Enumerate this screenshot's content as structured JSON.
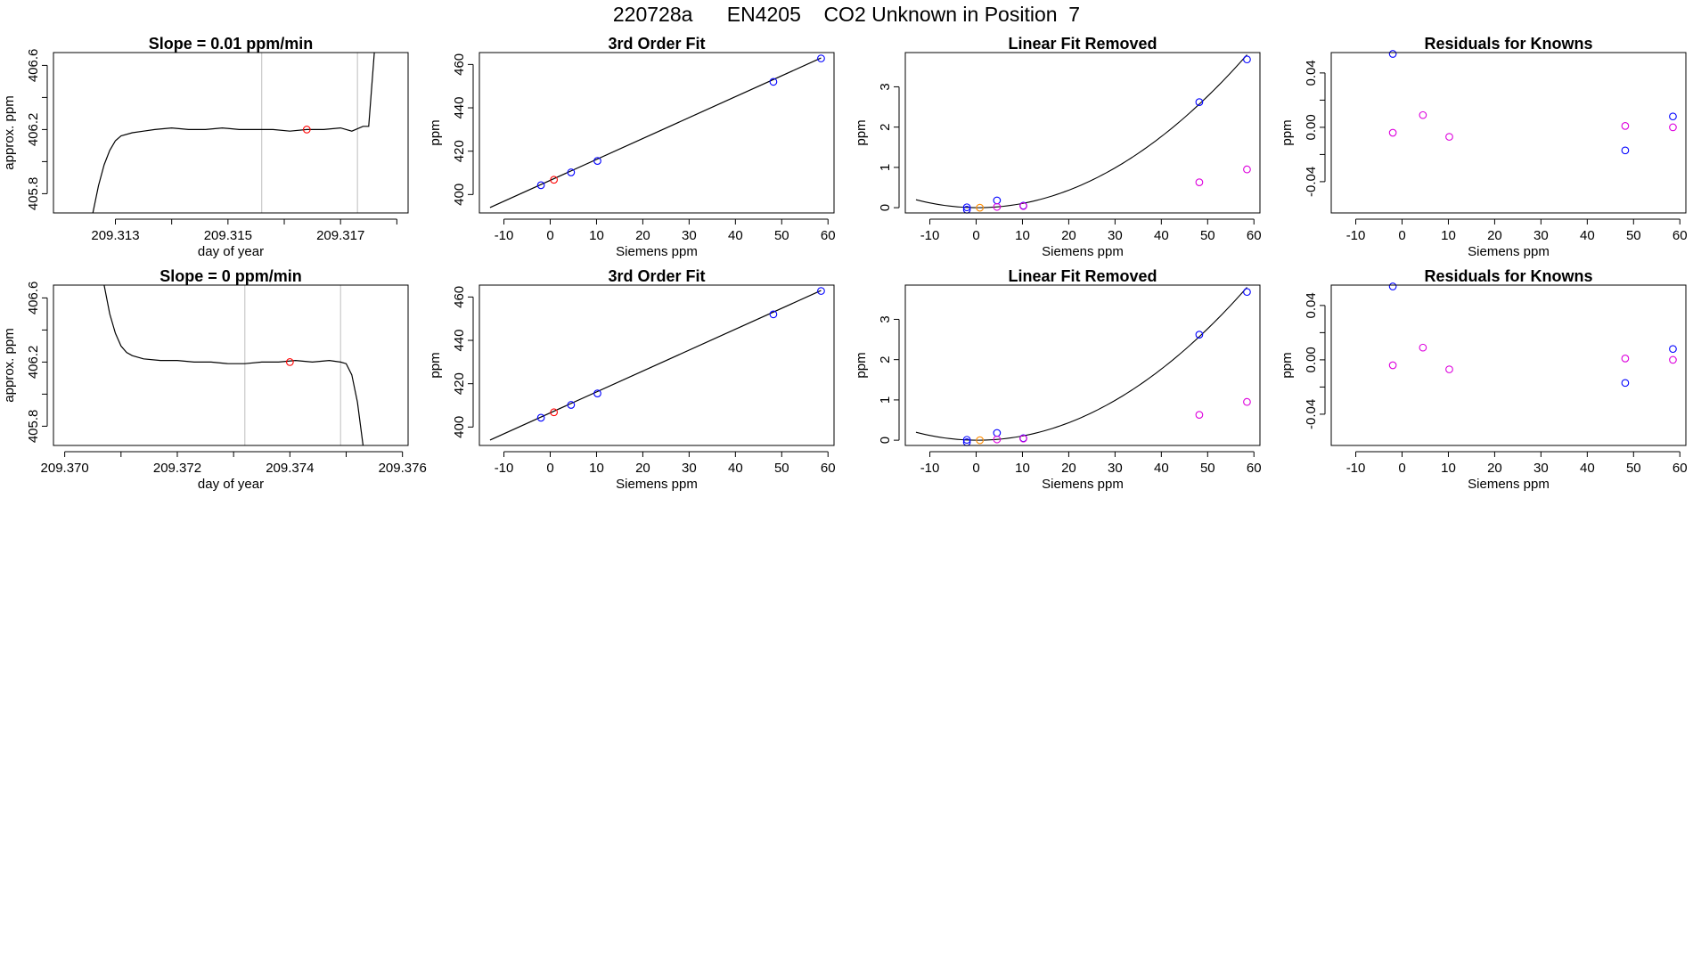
{
  "figure_title": "220728a      EN4205    CO2 Unknown in Position  7",
  "colors": {
    "known": "#0000ff",
    "unknown": "#ff0000",
    "orange": "#ff8c00",
    "magenta": "#dd00dd",
    "line": "#000000",
    "vline": "#bebebe"
  },
  "chart_data": [
    {
      "type": "line",
      "title": "Slope =  0.01  ppm/min",
      "xlabel": "day of year",
      "ylabel": "approx. ppm",
      "xlim": [
        209.3119,
        209.3182
      ],
      "ylim": [
        405.68,
        406.68
      ],
      "xticks": [
        209.313,
        209.314,
        209.315,
        209.316,
        209.317,
        209.318
      ],
      "xtick_labels": [
        "209.313",
        "",
        "209.315",
        "",
        "209.317",
        ""
      ],
      "yticks": [
        405.8,
        406.0,
        406.2,
        406.4,
        406.6
      ],
      "ytick_labels": [
        "405.8",
        "",
        "406.2",
        "",
        "406.6"
      ],
      "vlines": [
        209.3156,
        209.3173
      ],
      "series": [
        {
          "x": [
            209.3126,
            209.3127,
            209.3128,
            209.3129,
            209.313,
            209.3131,
            209.3133,
            209.3135,
            209.3137,
            209.314,
            209.3143,
            209.3146,
            209.3149,
            209.3152,
            209.3155,
            209.3158,
            209.3161,
            209.3164,
            209.3167,
            209.317,
            209.3172,
            209.3174,
            209.3175,
            209.3176
          ],
          "y": [
            405.68,
            405.85,
            405.98,
            406.07,
            406.13,
            406.16,
            406.18,
            406.19,
            406.2,
            406.21,
            406.2,
            406.2,
            406.21,
            406.2,
            406.2,
            406.2,
            406.19,
            406.2,
            406.2,
            406.21,
            406.19,
            406.22,
            406.22,
            406.68
          ]
        }
      ],
      "points": [
        {
          "x": 209.3164,
          "y": 406.2,
          "color": "unknown"
        }
      ]
    },
    {
      "type": "scatter",
      "title": "3rd Order Fit",
      "xlabel": "Siemens ppm",
      "ylabel": "ppm",
      "xlim": [
        -15.3,
        61.3
      ],
      "ylim": [
        391.5,
        465.5
      ],
      "xticks": [
        -10,
        0,
        10,
        20,
        30,
        40,
        50,
        60
      ],
      "xtick_labels": [
        "-10",
        "0",
        "10",
        "20",
        "30",
        "40",
        "50",
        "60"
      ],
      "yticks": [
        400,
        420,
        440,
        460
      ],
      "ytick_labels": [
        "400",
        "420",
        "440",
        "460"
      ],
      "series": [
        {
          "x": [
            -13,
            58.5
          ],
          "y": [
            394,
            463
          ]
        }
      ],
      "points": [
        {
          "x": -2,
          "y": 404.3,
          "color": "known"
        },
        {
          "x": 0.8,
          "y": 406.8,
          "color": "unknown"
        },
        {
          "x": 4.5,
          "y": 410.2,
          "color": "known"
        },
        {
          "x": 10.2,
          "y": 415.5,
          "color": "known"
        },
        {
          "x": 48.2,
          "y": 452.0,
          "color": "known"
        },
        {
          "x": 58.5,
          "y": 462.8,
          "color": "known"
        }
      ]
    },
    {
      "type": "scatter",
      "title": "Linear Fit Removed",
      "xlabel": "Siemens ppm",
      "ylabel": "ppm",
      "xlim": [
        -15.3,
        61.3
      ],
      "ylim": [
        -0.13,
        3.85
      ],
      "xticks": [
        -10,
        0,
        10,
        20,
        30,
        40,
        50,
        60
      ],
      "xtick_labels": [
        "-10",
        "0",
        "10",
        "20",
        "30",
        "40",
        "50",
        "60"
      ],
      "yticks": [
        0,
        1,
        2,
        3
      ],
      "ytick_labels": [
        "0",
        "1",
        "2",
        "3"
      ],
      "curve": {
        "x0": 0.3,
        "k": 0.00112,
        "from": -13,
        "to": 58.5
      },
      "points": [
        {
          "x": -2,
          "y": 0.01,
          "color": "known"
        },
        {
          "x": -2,
          "y": -0.05,
          "color": "known"
        },
        {
          "x": 0.8,
          "y": 0.0,
          "color": "orange"
        },
        {
          "x": 4.5,
          "y": 0.18,
          "color": "known"
        },
        {
          "x": 4.5,
          "y": 0.02,
          "color": "magenta"
        },
        {
          "x": 10.2,
          "y": 0.05,
          "color": "known"
        },
        {
          "x": 10.2,
          "y": 0.04,
          "color": "magenta"
        },
        {
          "x": 48.2,
          "y": 2.62,
          "color": "known"
        },
        {
          "x": 48.2,
          "y": 0.63,
          "color": "magenta"
        },
        {
          "x": 58.5,
          "y": 3.68,
          "color": "known"
        },
        {
          "x": 58.5,
          "y": 0.95,
          "color": "magenta"
        }
      ]
    },
    {
      "type": "scatter",
      "title": "Residuals for Knowns",
      "xlabel": "Siemens ppm",
      "ylabel": "ppm",
      "xlim": [
        -15.3,
        61.3
      ],
      "ylim": [
        -0.063,
        0.055
      ],
      "xticks": [
        -10,
        0,
        10,
        20,
        30,
        40,
        50,
        60
      ],
      "xtick_labels": [
        "-10",
        "0",
        "10",
        "20",
        "30",
        "40",
        "50",
        "60"
      ],
      "yticks": [
        -0.04,
        -0.02,
        0.0,
        0.02,
        0.04
      ],
      "ytick_labels": [
        "-0.04",
        "",
        "0.00",
        "",
        "0.04"
      ],
      "points": [
        {
          "x": -2,
          "y": 0.054,
          "color": "known"
        },
        {
          "x": -2,
          "y": -0.004,
          "color": "magenta"
        },
        {
          "x": 4.5,
          "y": 0.009,
          "color": "magenta"
        },
        {
          "x": 10.2,
          "y": -0.007,
          "color": "magenta"
        },
        {
          "x": 48.2,
          "y": -0.017,
          "color": "known"
        },
        {
          "x": 48.2,
          "y": 0.001,
          "color": "magenta"
        },
        {
          "x": 58.5,
          "y": 0.008,
          "color": "known"
        },
        {
          "x": 58.5,
          "y": 0.0,
          "color": "magenta"
        }
      ]
    },
    {
      "type": "line",
      "title": "Slope =  0  ppm/min",
      "xlabel": "day of year",
      "ylabel": "approx. ppm",
      "xlim": [
        209.3698,
        209.3761
      ],
      "ylim": [
        405.68,
        406.68
      ],
      "xticks": [
        209.37,
        209.371,
        209.372,
        209.373,
        209.374,
        209.375,
        209.376
      ],
      "xtick_labels": [
        "209.370",
        "",
        "209.372",
        "",
        "209.374",
        "",
        "209.376"
      ],
      "yticks": [
        405.8,
        406.0,
        406.2,
        406.4,
        406.6
      ],
      "ytick_labels": [
        "405.8",
        "",
        "406.2",
        "",
        "406.6"
      ],
      "vlines": [
        209.3732,
        209.3749
      ],
      "series": [
        {
          "x": [
            209.3707,
            209.3708,
            209.3709,
            209.371,
            209.3711,
            209.3712,
            209.3714,
            209.3717,
            209.372,
            209.3723,
            209.3726,
            209.3729,
            209.3732,
            209.3735,
            209.3738,
            209.3741,
            209.3744,
            209.3747,
            209.3749,
            209.375,
            209.3751,
            209.3752,
            209.3753
          ],
          "y": [
            406.68,
            406.5,
            406.38,
            406.3,
            406.26,
            406.24,
            406.22,
            406.21,
            406.21,
            406.2,
            406.2,
            406.19,
            406.19,
            406.2,
            406.2,
            406.21,
            406.2,
            406.21,
            406.2,
            406.19,
            406.12,
            405.95,
            405.68
          ]
        }
      ],
      "points": [
        {
          "x": 209.374,
          "y": 406.2,
          "color": "unknown"
        }
      ]
    },
    {
      "type": "scatter",
      "title": "3rd Order Fit",
      "xlabel": "Siemens ppm",
      "ylabel": "ppm",
      "xlim": [
        -15.3,
        61.3
      ],
      "ylim": [
        391.5,
        465.5
      ],
      "xticks": [
        -10,
        0,
        10,
        20,
        30,
        40,
        50,
        60
      ],
      "xtick_labels": [
        "-10",
        "0",
        "10",
        "20",
        "30",
        "40",
        "50",
        "60"
      ],
      "yticks": [
        400,
        420,
        440,
        460
      ],
      "ytick_labels": [
        "400",
        "420",
        "440",
        "460"
      ],
      "series": [
        {
          "x": [
            -13,
            58.5
          ],
          "y": [
            394,
            463
          ]
        }
      ],
      "points": [
        {
          "x": -2,
          "y": 404.3,
          "color": "known"
        },
        {
          "x": 0.8,
          "y": 406.8,
          "color": "unknown"
        },
        {
          "x": 4.5,
          "y": 410.2,
          "color": "known"
        },
        {
          "x": 10.2,
          "y": 415.5,
          "color": "known"
        },
        {
          "x": 48.2,
          "y": 452.0,
          "color": "known"
        },
        {
          "x": 58.5,
          "y": 462.8,
          "color": "known"
        }
      ]
    },
    {
      "type": "scatter",
      "title": "Linear Fit Removed",
      "xlabel": "Siemens ppm",
      "ylabel": "ppm",
      "xlim": [
        -15.3,
        61.3
      ],
      "ylim": [
        -0.13,
        3.85
      ],
      "xticks": [
        -10,
        0,
        10,
        20,
        30,
        40,
        50,
        60
      ],
      "xtick_labels": [
        "-10",
        "0",
        "10",
        "20",
        "30",
        "40",
        "50",
        "60"
      ],
      "yticks": [
        0,
        1,
        2,
        3
      ],
      "ytick_labels": [
        "0",
        "1",
        "2",
        "3"
      ],
      "curve": {
        "x0": 0.3,
        "k": 0.00112,
        "from": -13,
        "to": 58.5
      },
      "points": [
        {
          "x": -2,
          "y": 0.01,
          "color": "known"
        },
        {
          "x": -2,
          "y": -0.05,
          "color": "known"
        },
        {
          "x": 0.8,
          "y": 0.0,
          "color": "orange"
        },
        {
          "x": 4.5,
          "y": 0.18,
          "color": "known"
        },
        {
          "x": 4.5,
          "y": 0.02,
          "color": "magenta"
        },
        {
          "x": 10.2,
          "y": 0.05,
          "color": "known"
        },
        {
          "x": 10.2,
          "y": 0.04,
          "color": "magenta"
        },
        {
          "x": 48.2,
          "y": 2.62,
          "color": "known"
        },
        {
          "x": 48.2,
          "y": 0.63,
          "color": "magenta"
        },
        {
          "x": 58.5,
          "y": 3.68,
          "color": "known"
        },
        {
          "x": 58.5,
          "y": 0.95,
          "color": "magenta"
        }
      ]
    },
    {
      "type": "scatter",
      "title": "Residuals for Knowns",
      "xlabel": "Siemens ppm",
      "ylabel": "ppm",
      "xlim": [
        -15.3,
        61.3
      ],
      "ylim": [
        -0.063,
        0.055
      ],
      "xticks": [
        -10,
        0,
        10,
        20,
        30,
        40,
        50,
        60
      ],
      "xtick_labels": [
        "-10",
        "0",
        "10",
        "20",
        "30",
        "40",
        "50",
        "60"
      ],
      "yticks": [
        -0.04,
        -0.02,
        0.0,
        0.02,
        0.04
      ],
      "ytick_labels": [
        "-0.04",
        "",
        "0.00",
        "",
        "0.04"
      ],
      "points": [
        {
          "x": -2,
          "y": 0.054,
          "color": "known"
        },
        {
          "x": -2,
          "y": -0.004,
          "color": "magenta"
        },
        {
          "x": 4.5,
          "y": 0.009,
          "color": "magenta"
        },
        {
          "x": 10.2,
          "y": -0.007,
          "color": "magenta"
        },
        {
          "x": 48.2,
          "y": -0.017,
          "color": "known"
        },
        {
          "x": 48.2,
          "y": 0.001,
          "color": "magenta"
        },
        {
          "x": 58.5,
          "y": 0.008,
          "color": "known"
        },
        {
          "x": 58.5,
          "y": 0.0,
          "color": "magenta"
        }
      ]
    }
  ]
}
